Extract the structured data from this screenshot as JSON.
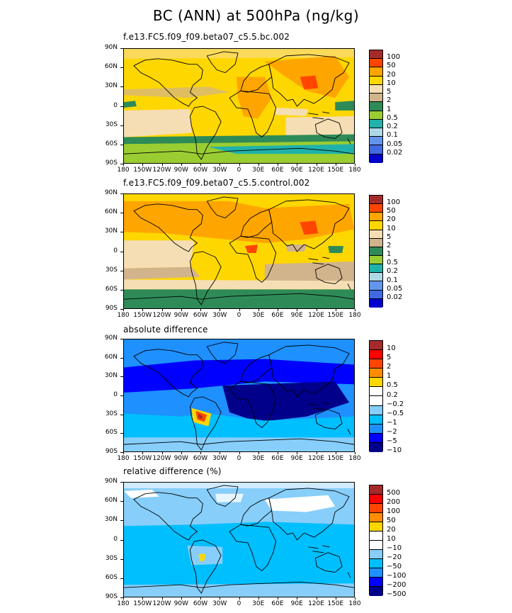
{
  "title": "BC (ANN) at 500hPa (ng/kg)",
  "lat_labels": [
    "90N",
    "60N",
    "30N",
    "0",
    "30S",
    "60S",
    "90S"
  ],
  "lon_labels": [
    "180",
    "150W",
    "120W",
    "90W",
    "60W",
    "30W",
    "0",
    "30E",
    "60E",
    "90E",
    "120E",
    "150E",
    "180"
  ],
  "panels": [
    {
      "title": "f.e13.FC5.f09_f09.beta07_c5.5.bc.002",
      "colorbar": {
        "colors": [
          "#a52a2a",
          "#ff4500",
          "#ffa500",
          "#ffd700",
          "#f5deb3",
          "#d2b48c",
          "#2e8b57",
          "#9acd32",
          "#20b2aa",
          "#add8e6",
          "#6495ed",
          "#4169e1",
          "#0000cd"
        ],
        "labels": [
          "100",
          "50",
          "20",
          "10",
          "5",
          "2",
          "1",
          "0.5",
          "0.2",
          "0.1",
          "0.05",
          "0.02"
        ]
      }
    },
    {
      "title": "f.e13.FC5.f09_f09.beta07_c5.5.control.002",
      "colorbar": {
        "colors": [
          "#a52a2a",
          "#ff4500",
          "#ffa500",
          "#ffd700",
          "#f5deb3",
          "#d2b48c",
          "#2e8b57",
          "#9acd32",
          "#20b2aa",
          "#add8e6",
          "#6495ed",
          "#4169e1",
          "#0000cd"
        ],
        "labels": [
          "100",
          "50",
          "20",
          "10",
          "5",
          "2",
          "1",
          "0.5",
          "0.2",
          "0.1",
          "0.05",
          "0.02"
        ]
      }
    },
    {
      "title": "absolute difference",
      "colorbar": {
        "colors": [
          "#a52a2a",
          "#ff0000",
          "#ff4500",
          "#ff8c00",
          "#ffd700",
          "#ffffff",
          "#ffffff",
          "#87cefa",
          "#00bfff",
          "#1e90ff",
          "#0000ff",
          "#00008b"
        ],
        "labels": [
          "10",
          "5",
          "2",
          "1",
          "0.5",
          "0.2",
          "−0.2",
          "−0.5",
          "−1",
          "−2",
          "−5",
          "−10"
        ]
      }
    },
    {
      "title": "relative difference (%)",
      "colorbar": {
        "colors": [
          "#a52a2a",
          "#ff0000",
          "#ff4500",
          "#ff8c00",
          "#ffd700",
          "#ffffff",
          "#ffffff",
          "#87cefa",
          "#00bfff",
          "#1e90ff",
          "#0000ff",
          "#00008b"
        ],
        "labels": [
          "500",
          "200",
          "100",
          "50",
          "20",
          "10",
          "−10",
          "−20",
          "−50",
          "−100",
          "−200",
          "−500"
        ]
      }
    }
  ]
}
